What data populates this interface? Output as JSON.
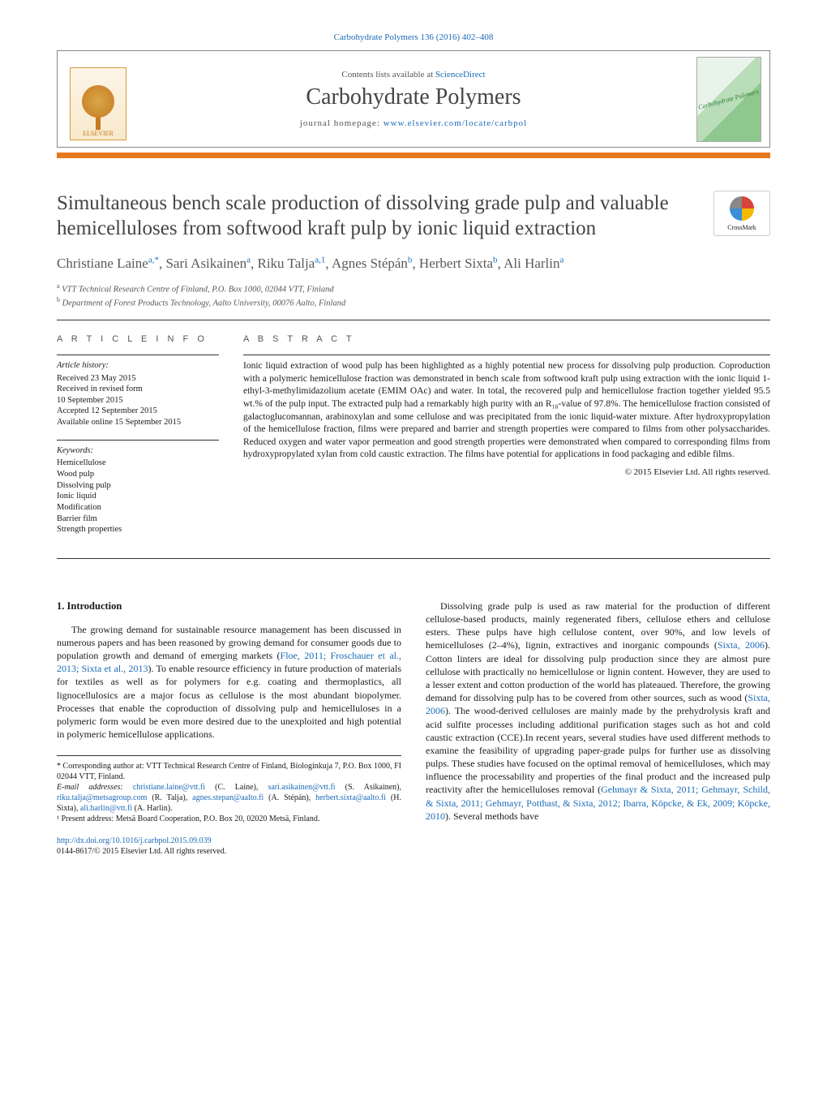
{
  "header": {
    "top_citation": "Carbohydrate Polymers 136 (2016) 402–408",
    "contents_text": "Contents lists available at ",
    "contents_link": "ScienceDirect",
    "journal_name": "Carbohydrate Polymers",
    "homepage_label": "journal homepage: ",
    "homepage_url": "www.elsevier.com/locate/carbpol",
    "elsevier_label": "ELSEVIER",
    "cover_label": "Carbohydrate Polymers",
    "crossmark_label": "CrossMark"
  },
  "article": {
    "title": "Simultaneous bench scale production of dissolving grade pulp and valuable hemicelluloses from softwood kraft pulp by ionic liquid extraction",
    "authors_html": [
      {
        "name": "Christiane Laine",
        "sup": "a,*"
      },
      {
        "name": "Sari Asikainen",
        "sup": "a"
      },
      {
        "name": "Riku Talja",
        "sup": "a,1"
      },
      {
        "name": "Agnes Stépán",
        "sup": "b"
      },
      {
        "name": "Herbert Sixta",
        "sup": "b"
      },
      {
        "name": "Ali Harlin",
        "sup": "a"
      }
    ],
    "affiliations": [
      {
        "sup": "a",
        "text": "VTT Technical Research Centre of Finland, P.O. Box 1000, 02044 VTT, Finland"
      },
      {
        "sup": "b",
        "text": "Department of Forest Products Technology, Aalto University, 00076 Aalto, Finland"
      }
    ]
  },
  "info": {
    "label": "A R T I C L E   I N F O",
    "history_heading": "Article history:",
    "history_lines": [
      "Received 23 May 2015",
      "Received in revised form",
      "10 September 2015",
      "Accepted 12 September 2015",
      "Available online 15 September 2015"
    ],
    "keywords_heading": "Keywords:",
    "keywords": [
      "Hemicellulose",
      "Wood pulp",
      "Dissolving pulp",
      "Ionic liquid",
      "Modification",
      "Barrier film",
      "Strength properties"
    ]
  },
  "abstract": {
    "label": "A B S T R A C T",
    "text": "Ionic liquid extraction of wood pulp has been highlighted as a highly potential new process for dissolving pulp production. Coproduction with a polymeric hemicellulose fraction was demonstrated in bench scale from softwood kraft pulp using extraction with the ionic liquid 1-ethyl-3-methylimidazolium acetate (EMIM OAc) and water. In total, the recovered pulp and hemicellulose fraction together yielded 95.5 wt.% of the pulp input. The extracted pulp had a remarkably high purity with an R₁₈-value of 97.8%. The hemicellulose fraction consisted of galactoglucomannan, arabinoxylan and some cellulose and was precipitated from the ionic liquid-water mixture. After hydroxypropylation of the hemicellulose fraction, films were prepared and barrier and strength properties were compared to films from other polysaccharides. Reduced oxygen and water vapor permeation and good strength properties were demonstrated when compared to corresponding films from hydroxypropylated xylan from cold caustic extraction. The films have potential for applications in food packaging and edible films.",
    "copyright": "© 2015 Elsevier Ltd. All rights reserved."
  },
  "body": {
    "intro_heading": "1. Introduction",
    "left_paragraph": "The growing demand for sustainable resource management has been discussed in numerous papers and has been reasoned by growing demand for consumer goods due to population growth and demand of emerging markets (",
    "left_cite": "Floe, 2011; Froschauer et al., 2013; Sixta et al., 2013",
    "left_paragraph2": "). To enable resource efficiency in future production of materials for textiles as well as for polymers for e.g. coating and thermoplastics, all lignocellulosics are a major focus as cellulose is the most abundant biopolymer. Processes that enable the coproduction of dissolving pulp and hemicelluloses in a polymeric form would be even more desired due to the unexploited and high potential in polymeric hemicellulose applications.",
    "right_paragraph1a": "Dissolving grade pulp is used as raw material for the production of different cellulose-based products, mainly regenerated fibers, cellulose ethers and cellulose esters. These pulps have high cellulose content, over 90%, and low levels of hemicelluloses (2–4%), lignin, extractives and inorganic compounds (",
    "right_cite1": "Sixta, 2006",
    "right_paragraph1b": "). Cotton linters are ideal for dissolving pulp production since they are almost pure cellulose with practically no hemicellulose or lignin content. However, they are used to a lesser extent and cotton production of the world has plateaued. Therefore, the growing demand for dissolving pulp has to be covered from other sources, such as wood (",
    "right_cite2": "Sixta, 2006",
    "right_paragraph1c": "). The wood-derived celluloses are mainly made by the prehydrolysis kraft and acid sulfite processes including additional purification stages such as hot and cold caustic extraction (CCE).In recent years, several studies have used different methods to examine the feasibility of upgrading paper-grade pulps for further use as dissolving pulps. These studies have focused on the optimal removal of hemicelluloses, which may influence the processability and properties of the final product and the increased pulp reactivity after the hemicelluloses removal (",
    "right_cite3": "Gehmayr & Sixta, 2011; Gehmayr, Schild, & Sixta, 2011; Gehmayr, Potthast, & Sixta, 2012; Ibarra, Köpcke, & Ek, 2009; Köpcke, 2010",
    "right_paragraph1d": "). Several methods have"
  },
  "footnotes": {
    "corresponding": "* Corresponding author at: VTT Technical Research Centre of Finland, Biologinkuja 7, P.O. Box 1000, FI 02044 VTT, Finland.",
    "email_label": "E-mail addresses: ",
    "emails": [
      {
        "addr": "christiane.laine@vtt.fi",
        "who": "(C. Laine)"
      },
      {
        "addr": "sari.asikainen@vtt.fi",
        "who": "(S. Asikainen)"
      },
      {
        "addr": "riku.talja@metsagroup.com",
        "who": "(R. Talja)"
      },
      {
        "addr": "agnes.stepan@aalto.fi",
        "who": "(A. Stépán)"
      },
      {
        "addr": "herbert.sixta@aalto.fi",
        "who": "(H. Sixta)"
      },
      {
        "addr": "ali.harlin@vtt.fi",
        "who": "(A. Harlin)"
      }
    ],
    "present_addr": "¹ Present address: Metsä Board Cooperation, P.O. Box 20, 02020 Metsä, Finland.",
    "doi": "http://dx.doi.org/10.1016/j.carbpol.2015.09.039",
    "issn_line": "0144-8617/© 2015 Elsevier Ltd. All rights reserved."
  },
  "style": {
    "link_color": "#1a6bb8",
    "orange": "#e67820",
    "text_color": "#1a1a1a",
    "gray_heading": "#5a5a5a"
  }
}
